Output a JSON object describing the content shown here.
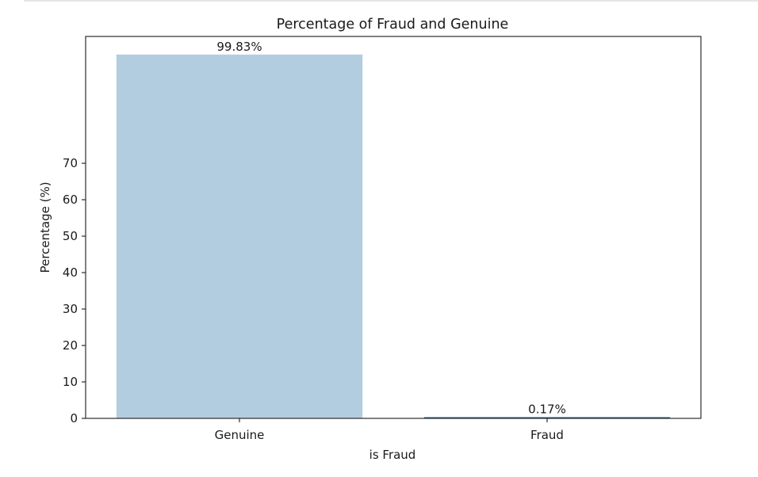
{
  "chart_data": {
    "type": "bar",
    "title": "Percentage of Fraud and Genuine",
    "xlabel": "is Fraud",
    "ylabel": "Percentage (%)",
    "categories": [
      "Genuine",
      "Fraud"
    ],
    "values": [
      99.83,
      0.17
    ],
    "data_labels": [
      "99.83%",
      "0.17%"
    ],
    "bar_colors": [
      "#b3cde0",
      "#1f5f8b"
    ],
    "yticks": [
      0,
      10,
      20,
      30,
      40,
      50,
      60,
      70
    ],
    "ylim": [
      0,
      104.8
    ],
    "grid": false,
    "legend": "none"
  }
}
